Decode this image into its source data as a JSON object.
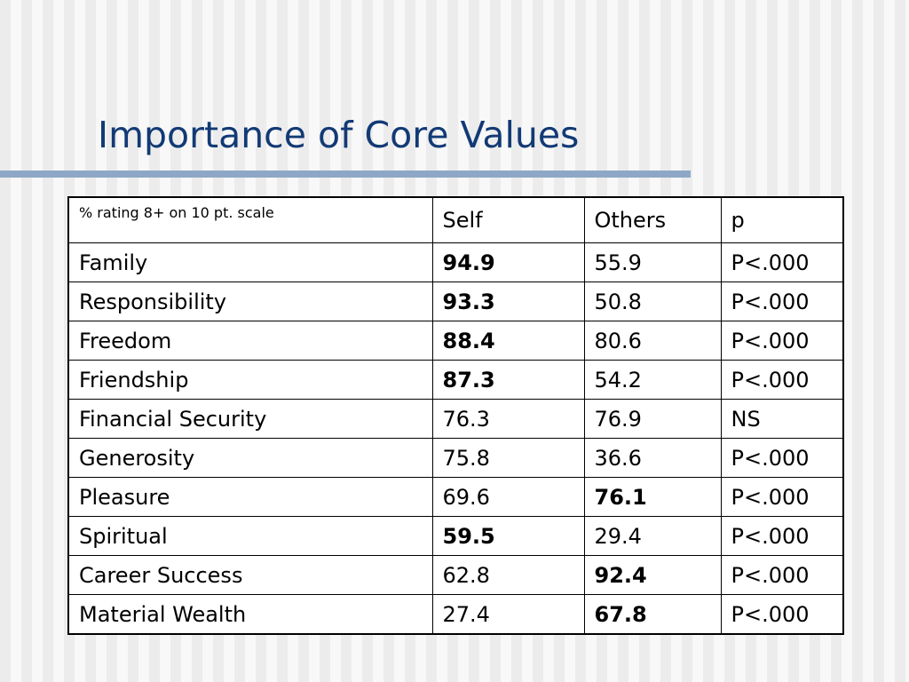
{
  "slide": {
    "title": "Importance of Core Values"
  },
  "table": {
    "header": {
      "caption": "% rating 8+ on 10 pt. scale",
      "self": "Self",
      "others": "Others",
      "p": "p"
    },
    "rows": [
      {
        "value": "Family",
        "self": "94.9",
        "others": "55.9",
        "p": "P<.000",
        "bold": "self"
      },
      {
        "value": "Responsibility",
        "self": "93.3",
        "others": "50.8",
        "p": "P<.000",
        "bold": "self"
      },
      {
        "value": "Freedom",
        "self": "88.4",
        "others": "80.6",
        "p": "P<.000",
        "bold": "self"
      },
      {
        "value": "Friendship",
        "self": "87.3",
        "others": "54.2",
        "p": "P<.000",
        "bold": "self"
      },
      {
        "value": "Financial Security",
        "self": "76.3",
        "others": "76.9",
        "p": "NS",
        "bold": "none"
      },
      {
        "value": "Generosity",
        "self": "75.8",
        "others": "36.6",
        "p": "P<.000",
        "bold": "none"
      },
      {
        "value": "Pleasure",
        "self": "69.6",
        "others": "76.1",
        "p": "P<.000",
        "bold": "others"
      },
      {
        "value": "Spiritual",
        "self": "59.5",
        "others": "29.4",
        "p": "P<.000",
        "bold": "self"
      },
      {
        "value": "Career Success",
        "self": "62.8",
        "others": "92.4",
        "p": "P<.000",
        "bold": "others"
      },
      {
        "value": "Material Wealth",
        "self": "27.4",
        "others": "67.8",
        "p": "P<.000",
        "bold": "others"
      }
    ]
  },
  "colors": {
    "title": "#123a75",
    "rule": "#8ea7c6",
    "background_stripe_dark": "#ececec",
    "background_stripe_light": "#f8f8f8"
  }
}
